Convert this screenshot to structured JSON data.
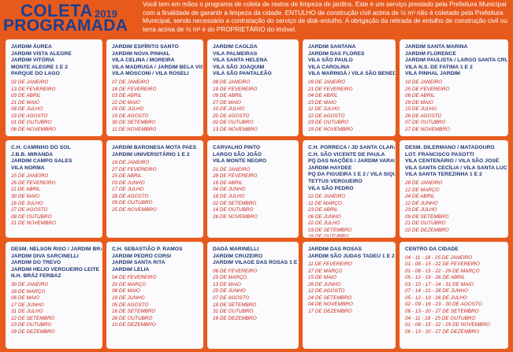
{
  "header": {
    "title_line1": "COLETA",
    "title_year": "2019",
    "title_line2": "PROGRAMADA",
    "intro": "Você tem em mãos o programa de coleta de restos de limpeza de jardins. Este é um serviço prestado pela Prefeitura Municipal com a finalidade de garantir a limpeza da cidade. ENTULHO de construção civil acima de ½ m³ não é coletado pela Prefeitura Municipal, sendo necessário a contratação do serviço de disk-entulho. A obrigação da retirada de entulho de construção civil ou terra acima de ½ m³ é do PROPRIETÁRIO do imóvel."
  },
  "cards": [
    {
      "names": [
        "JARDIM ÁUREA",
        "JARDIM VISTA ALEGRE",
        "JARDIM VITÓRIA",
        "MONTE ALEGRE 1 E 2",
        "PARQUE DO LAGO"
      ],
      "dates": [
        "02 DE JANEIRO",
        "13 DE FEVEREIRO",
        "03 DE ABRIL",
        "21 DE MAIO",
        "08 DE JULHO",
        "19 DE AGOSTO",
        "01 DE OUTUBRO",
        "06 DE NOVEMBRO"
      ]
    },
    {
      "names": [
        "JARDIM ESPÍRITO SANTO",
        "JARDIM NOVA PINHAL",
        "VILA CELINA / MOREIRA",
        "VILA MADRUGA / JARDIM BELA VISTA",
        "VILA MOSCONI / VILA ROSELI"
      ],
      "dates": [
        "07 DE JANEIRO",
        "18 DE FEVEREIRO",
        "03 DE ABRIL",
        "22 DE MAIO",
        "09 DE JULHO",
        "19 DE AGOSTO",
        "30 DE SETEMBRO",
        "11 DE NOVEMBRO"
      ]
    },
    {
      "names": [
        "JARDIM CAOLDA",
        "VILA PALMEIRAS",
        "VILA SANTA HELENA",
        "VILA SÃO JOAQUIM",
        "VILA SÃO PANTALEÃO"
      ],
      "dates": [
        "08 DE JANEIRO",
        "19 DE FEVEREIRO",
        "09 DE ABRIL",
        "27 DE MAIO",
        "10 DE JULHO",
        "20 DE AGOSTO",
        "02 DE OUTUBRO",
        "13 DE NOVEMBRO"
      ]
    },
    {
      "names": [
        "JARDIM SANTANA",
        "JARDIM DAS FLORES",
        "VILA SÃO PAULO",
        "VILA CAROLINA",
        "VILA MARINGÁ / VILA SÃO BENEDITO"
      ],
      "dates": [
        "09 DE JANEIRO",
        "21 DE FEVEREIRO",
        "04 DE ABRIL",
        "23 DE MAIO",
        "11 DE JULHO",
        "22 DE AGOSTO",
        "03 DE OUTUBRO",
        "19 DE NOVEMBRO"
      ]
    },
    {
      "names": [
        "JARDIM SANTA MARINA",
        "JARDIM FLORENCE",
        "JARDIM PAULISTA / LARGO SANTA CRUZ",
        "VILA N.S. DE FATIMA 1 E 2",
        "VILA PINHAL JARDIM"
      ],
      "dates": [
        "10 DE JANEIRO",
        "25 DE FEVEREIRO",
        "08 DE ABRIL",
        "29 DE MAIO",
        "15 DE JULHO",
        "26 DE AGOSTO",
        "07 DE OUTUBRO",
        "27 DE NOVEMBRO"
      ]
    },
    {
      "names": [
        "C.H. CAMINHO DO SOL",
        "J.B.B. MIRANDA",
        "JARDIM CAMPO SALES",
        "VILA NORMA"
      ],
      "dates": [
        "15 DE JANEIRO",
        "26 DE FEVEREIRO",
        "11 DE ABRIL",
        "30 DE MAIO",
        "16 DE JULHO",
        "27 DE AGOSTO",
        "08 DE OUTUBRO",
        "21 DE NOVEMBRO"
      ]
    },
    {
      "names": [
        "JARDIM BARONESA MOTA PAES",
        "JARDIM UNIVERSITÁRIO 1 E 2"
      ],
      "dates": [
        "16 DE JANEIRO",
        "27 DE FEVEREIRO",
        "15 DE ABRIL",
        "03 DE JUNHO",
        "17 DE JULHO",
        "28 DE AGOSTO",
        "09 DE OUTUBRO",
        "25 DE NOVEMBRO"
      ]
    },
    {
      "names": [
        "CARVALHO PINTO",
        "LARGO SÃO JOÃO",
        "VILA MONTE NEGRO"
      ],
      "dates": [
        "21 DE JANEIRO",
        "28 DE FEVEREIRO",
        "16 DE ABRIL",
        "04 DE JUNHO",
        "18 DE JULHO",
        "02 DE SETEMBRO",
        "14 DE OUTUBRO",
        "26 DE NOVEMBRO"
      ]
    },
    {
      "names": [
        "C.H. PORRECA / JD SANTA CLARA",
        "C.H. SÃO VICENTE DE PAULA",
        "PQ DAS NAÇÕES / JARDIM VARAM",
        "JARDIM HAYDEE",
        "PQ DA FIGUEIRA 1 E 2 / VILA SIQUEIRA",
        "TETTUS VERGUEIRO",
        "VILA SÃO PEDRO"
      ],
      "dates": [
        "22 DE JANEIRO",
        "11 DE MARÇO",
        "23 DE ABRIL",
        "06 DE JUNHO",
        "22 DE JULHO",
        "03 DE SETEMBRO",
        "16 DE OUTUBRO",
        "28 DE NOVEMBRO"
      ]
    },
    {
      "names": [
        "DESM. DILERMANO / MATADOURO",
        "LOT. FRANCISCO PASOTTI",
        "VILA CENTENÁRIO / VILA SÃO JOSÉ",
        "VILA SANTA CECÍLIA / VILA SANTA LUCIA",
        "VILA SANTA TEREZINHA 1 E 2"
      ],
      "dates": [
        "28 DE JANEIRO",
        "12 DE MARÇO",
        "24 DE ABRIL",
        "12 DE JUNHO",
        "23 DE JULHO",
        "09 DE SETEMBRO",
        "21 DE OUTUBRO",
        "02 DE DEZEMBRO"
      ]
    },
    {
      "names": [
        "DESM. NELSON RISO / JARDIM BRASIL",
        "JARDIM DIVA SARCINELLI",
        "JARDIM DO TREVO",
        "JARDIM HELIO VERGUEIRO LEITE",
        "N.H. BRÁZ FERBAZ"
      ],
      "dates": [
        "30 DE JANEIRO",
        "18 DE MARÇO",
        "06 DE MAIO",
        "17 DE JUNHO",
        "31 DE JULHO",
        "12 DE SETEMBRO",
        "23 DE OUTUBRO",
        "09 DE DEZEMBRO"
      ]
    },
    {
      "names": [
        "C.H. SEBASTIÃO P. RAMOS",
        "JARDIM PEDRO CORSI",
        "JARDIM SANTA RITA",
        "JARDIM LELIA"
      ],
      "dates": [
        "04 DE FEVEREIRO",
        "20 DE MARÇO",
        "08 DE MAIO",
        "19 DE JUNHO",
        "05 DE AGOSTO",
        "16 DE SETEMBRO",
        "28 DE OUTUBRO",
        "10 DE DEZEMBRO"
      ]
    },
    {
      "names": [
        "DADÁ MARINELLI",
        "JARDIM CRUZEIRO",
        "JARDIM VILAGE DAS ROSAS 1 E 2"
      ],
      "dates": [
        "06 DE FEVEREIRO",
        "25 DE MARÇO",
        "13 DE MAIO",
        "25 DE JUNHO",
        "07 DE AGOSTO",
        "18 DE SETEMBRO",
        "31 DE OUTUBRO",
        "16 DE DEZEMBRO"
      ]
    },
    {
      "names": [
        "JARDIM DAS ROSAS",
        "JARDIM SÃO JUDAS TADEU 1 E 2"
      ],
      "dates": [
        "11 DE FEVEREIRO",
        "27 DE MARÇO",
        "15 DE MAIO",
        "26 DE JUNHO",
        "12 DE AGOSTO",
        "24 DE SETEMBRO",
        "04 DE NOVEMBRO",
        "17 DE DEZEMBRO"
      ]
    },
    {
      "names": [
        "CENTRO DA CIDADE"
      ],
      "dates": [
        "04 - 11 - 18 - 25 DE JANEIRO",
        "01 - 08 - 15 - 22 DE FEVEREIRO",
        "01 - 08 - 15 - 22 - 29 DE MARÇO",
        "05 - 12 - 19 - 26 DE ABRIL",
        "03 - 10 - 17 - 24 - 31 DE MAIO",
        "07 - 14 - 21 - 28 DE JUNHO",
        "05 - 12 - 19 - 26 DE JULHO",
        "02 - 09 - 16 - 23 - 30 DE AGOSTO",
        "06 - 13 - 20 - 27 DE SETEMBRO",
        "04 - 11 - 18 - 25 DE OUTUBRO",
        "01 - 08 - 15 - 22 - 29 DE NOVEMBRO",
        "06 - 13 - 20 - 27 DE DEZEMBRO"
      ]
    }
  ]
}
